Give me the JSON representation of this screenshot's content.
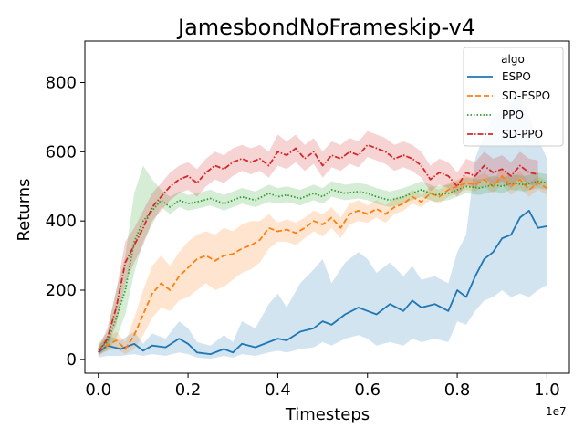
{
  "chart_data": {
    "type": "line",
    "title": "JamesbondNoFrameskip-v4",
    "xlabel": "Timesteps",
    "ylabel": "Returns",
    "x_offset_label": "1e7",
    "xlim": [
      -0.03,
      1.05
    ],
    "ylim": [
      -40,
      920
    ],
    "x_ticks": [
      0.0,
      0.2,
      0.4,
      0.6,
      0.8,
      1.0
    ],
    "x_tick_labels": [
      "0.0",
      "0.2",
      "0.4",
      "0.6",
      "0.8",
      "1.0"
    ],
    "y_ticks": [
      0,
      200,
      400,
      600,
      800
    ],
    "y_tick_labels": [
      "0",
      "200",
      "400",
      "600",
      "800"
    ],
    "grid": false,
    "legend": {
      "title": "algo",
      "placement": "top-right"
    },
    "series": [
      {
        "name": "ESPO",
        "color": "#1f77b4",
        "dash": "solid",
        "x": [
          0.0,
          0.02,
          0.05,
          0.08,
          0.1,
          0.12,
          0.15,
          0.18,
          0.2,
          0.22,
          0.25,
          0.28,
          0.3,
          0.32,
          0.35,
          0.38,
          0.4,
          0.42,
          0.45,
          0.48,
          0.5,
          0.52,
          0.55,
          0.58,
          0.6,
          0.62,
          0.65,
          0.68,
          0.7,
          0.72,
          0.75,
          0.78,
          0.8,
          0.82,
          0.84,
          0.86,
          0.88,
          0.9,
          0.92,
          0.94,
          0.96,
          0.98,
          1.0
        ],
        "y": [
          20,
          40,
          30,
          45,
          25,
          40,
          35,
          60,
          45,
          20,
          15,
          30,
          20,
          45,
          35,
          50,
          60,
          55,
          80,
          90,
          110,
          100,
          130,
          150,
          140,
          130,
          160,
          140,
          170,
          150,
          160,
          140,
          200,
          180,
          240,
          290,
          310,
          350,
          360,
          410,
          430,
          380,
          385
        ],
        "lower": [
          5,
          10,
          10,
          15,
          10,
          15,
          10,
          20,
          15,
          5,
          2,
          10,
          5,
          15,
          10,
          20,
          25,
          20,
          30,
          35,
          50,
          40,
          60,
          70,
          60,
          40,
          50,
          40,
          60,
          50,
          60,
          50,
          110,
          100,
          140,
          170,
          180,
          200,
          180,
          190,
          180,
          200,
          215
        ],
        "upper": [
          35,
          70,
          55,
          80,
          45,
          75,
          60,
          110,
          90,
          50,
          40,
          70,
          50,
          110,
          90,
          160,
          190,
          150,
          220,
          260,
          290,
          220,
          280,
          310,
          290,
          250,
          280,
          240,
          270,
          230,
          240,
          220,
          310,
          360,
          580,
          650,
          700,
          720,
          740,
          760,
          700,
          640,
          580
        ]
      },
      {
        "name": "SD-ESPO",
        "color": "#ff7f0e",
        "dash": "dashed",
        "x": [
          0.0,
          0.02,
          0.04,
          0.06,
          0.08,
          0.1,
          0.12,
          0.14,
          0.16,
          0.18,
          0.2,
          0.22,
          0.24,
          0.26,
          0.28,
          0.3,
          0.32,
          0.34,
          0.36,
          0.38,
          0.4,
          0.42,
          0.44,
          0.46,
          0.48,
          0.5,
          0.52,
          0.54,
          0.56,
          0.58,
          0.6,
          0.62,
          0.64,
          0.66,
          0.68,
          0.7,
          0.72,
          0.74,
          0.76,
          0.78,
          0.8,
          0.82,
          0.84,
          0.86,
          0.88,
          0.9,
          0.92,
          0.94,
          0.96,
          0.98,
          1.0
        ],
        "y": [
          25,
          40,
          55,
          30,
          70,
          130,
          190,
          220,
          200,
          240,
          265,
          290,
          300,
          285,
          300,
          305,
          320,
          330,
          345,
          380,
          370,
          375,
          365,
          380,
          400,
          390,
          410,
          380,
          420,
          430,
          420,
          435,
          420,
          440,
          450,
          470,
          455,
          480,
          470,
          490,
          500,
          510,
          505,
          520,
          500,
          530,
          500,
          520,
          490,
          510,
          495
        ],
        "lower": [
          10,
          25,
          30,
          15,
          30,
          70,
          120,
          150,
          140,
          170,
          180,
          200,
          220,
          200,
          210,
          230,
          250,
          260,
          280,
          320,
          340,
          340,
          330,
          350,
          370,
          355,
          380,
          350,
          390,
          400,
          395,
          410,
          395,
          420,
          430,
          450,
          440,
          460,
          450,
          470,
          480,
          490,
          485,
          500,
          480,
          505,
          475,
          495,
          470,
          490,
          475
        ],
        "upper": [
          45,
          60,
          80,
          50,
          120,
          200,
          270,
          300,
          270,
          310,
          340,
          360,
          370,
          360,
          380,
          370,
          390,
          400,
          400,
          420,
          395,
          405,
          395,
          410,
          430,
          420,
          440,
          410,
          450,
          460,
          445,
          460,
          445,
          465,
          470,
          490,
          475,
          500,
          490,
          510,
          520,
          530,
          525,
          540,
          520,
          550,
          525,
          545,
          510,
          530,
          515
        ]
      },
      {
        "name": "PPO",
        "color": "#2ca02c",
        "dash": "dotted",
        "x": [
          0.0,
          0.02,
          0.04,
          0.06,
          0.08,
          0.1,
          0.12,
          0.14,
          0.16,
          0.18,
          0.2,
          0.22,
          0.25,
          0.28,
          0.3,
          0.32,
          0.35,
          0.38,
          0.4,
          0.42,
          0.45,
          0.48,
          0.5,
          0.52,
          0.55,
          0.58,
          0.6,
          0.62,
          0.65,
          0.68,
          0.7,
          0.72,
          0.75,
          0.78,
          0.8,
          0.82,
          0.85,
          0.88,
          0.9,
          0.92,
          0.95,
          0.98,
          1.0
        ],
        "y": [
          30,
          50,
          120,
          200,
          340,
          400,
          430,
          460,
          440,
          460,
          450,
          455,
          465,
          450,
          460,
          470,
          460,
          480,
          470,
          475,
          465,
          480,
          470,
          490,
          480,
          485,
          480,
          470,
          460,
          470,
          480,
          490,
          475,
          480,
          490,
          500,
          495,
          505,
          500,
          510,
          505,
          515,
          510
        ],
        "lower": [
          15,
          25,
          60,
          130,
          250,
          340,
          390,
          440,
          420,
          440,
          430,
          435,
          445,
          430,
          440,
          450,
          440,
          455,
          450,
          455,
          445,
          460,
          450,
          470,
          460,
          465,
          460,
          450,
          440,
          450,
          460,
          470,
          455,
          460,
          470,
          480,
          475,
          485,
          480,
          490,
          485,
          495,
          490
        ],
        "upper": [
          45,
          80,
          200,
          300,
          480,
          560,
          520,
          490,
          470,
          485,
          475,
          480,
          490,
          475,
          485,
          495,
          485,
          505,
          495,
          500,
          490,
          505,
          495,
          515,
          505,
          510,
          505,
          495,
          485,
          495,
          505,
          515,
          500,
          505,
          515,
          525,
          520,
          530,
          525,
          535,
          530,
          540,
          535
        ]
      },
      {
        "name": "SD-PPO",
        "color": "#d62728",
        "dash": "dashdot",
        "x": [
          0.0,
          0.02,
          0.04,
          0.06,
          0.08,
          0.1,
          0.12,
          0.14,
          0.16,
          0.18,
          0.2,
          0.22,
          0.24,
          0.26,
          0.28,
          0.3,
          0.32,
          0.34,
          0.36,
          0.38,
          0.4,
          0.42,
          0.44,
          0.46,
          0.48,
          0.5,
          0.52,
          0.54,
          0.56,
          0.58,
          0.6,
          0.62,
          0.64,
          0.66,
          0.68,
          0.7,
          0.72,
          0.74,
          0.76,
          0.78,
          0.8,
          0.82,
          0.84,
          0.86,
          0.88,
          0.9,
          0.92,
          0.94,
          0.96,
          0.98
        ],
        "y": [
          20,
          60,
          150,
          280,
          330,
          380,
          440,
          470,
          500,
          520,
          530,
          510,
          540,
          560,
          550,
          570,
          580,
          570,
          580,
          560,
          600,
          590,
          610,
          580,
          600,
          560,
          590,
          580,
          600,
          590,
          620,
          610,
          600,
          580,
          590,
          580,
          560,
          520,
          540,
          530,
          500,
          540,
          530,
          560,
          540,
          550,
          530,
          560,
          540,
          535
        ],
        "lower": [
          10,
          35,
          100,
          220,
          280,
          330,
          400,
          430,
          460,
          480,
          490,
          470,
          500,
          520,
          510,
          530,
          545,
          535,
          545,
          525,
          560,
          550,
          570,
          545,
          565,
          525,
          555,
          545,
          565,
          555,
          585,
          575,
          565,
          545,
          555,
          545,
          525,
          485,
          505,
          495,
          470,
          505,
          495,
          525,
          505,
          515,
          495,
          525,
          505,
          500
        ],
        "upper": [
          35,
          90,
          200,
          340,
          380,
          430,
          480,
          510,
          540,
          560,
          570,
          550,
          580,
          600,
          590,
          610,
          620,
          610,
          620,
          600,
          650,
          630,
          650,
          620,
          640,
          600,
          630,
          620,
          640,
          630,
          660,
          650,
          640,
          620,
          630,
          620,
          600,
          560,
          580,
          570,
          540,
          580,
          570,
          600,
          580,
          590,
          570,
          600,
          580,
          575
        ]
      }
    ]
  }
}
